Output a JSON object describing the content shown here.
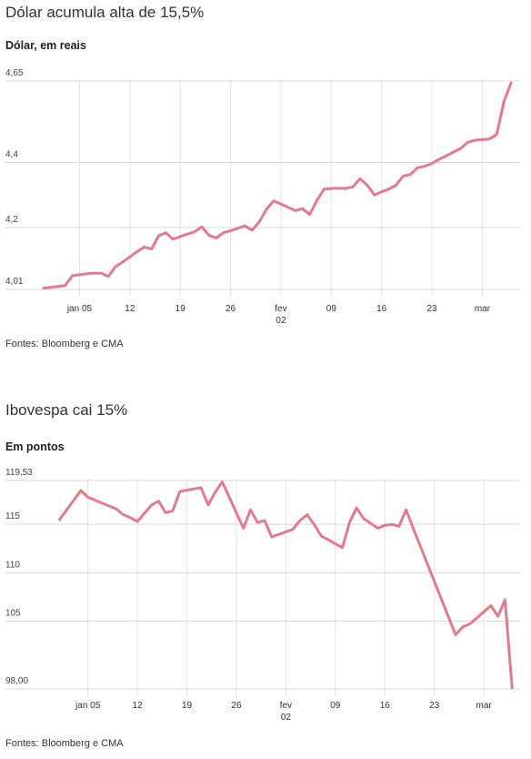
{
  "charts": [
    {
      "headline": "Dólar acumula alta de 15,5%",
      "subtitle": "Dólar, em reais",
      "source": "Fontes: Bloomberg e CMA"
    },
    {
      "headline": "Ibovespa cai 15%",
      "subtitle": "Em pontos",
      "source": "Fontes: Bloomberg e CMA"
    }
  ],
  "chart_data": [
    {
      "type": "line",
      "title": "Dólar acumula alta de 15,5%",
      "subtitle": "Dólar, em reais",
      "ylim": [
        4.01,
        4.65
      ],
      "yticks": [
        {
          "value": 4.65,
          "label": "4,65"
        },
        {
          "value": 4.4,
          "label": "4,4"
        },
        {
          "value": 4.2,
          "label": "4,2"
        },
        {
          "value": 4.01,
          "label": "4,01"
        }
      ],
      "xticks": [
        {
          "day": 5,
          "label": "jan 05"
        },
        {
          "day": 12,
          "label": "12"
        },
        {
          "day": 19,
          "label": "19"
        },
        {
          "day": 26,
          "label": "26"
        },
        {
          "day": 33,
          "label": "fev",
          "label2": "02"
        },
        {
          "day": 40,
          "label": "09"
        },
        {
          "day": 47,
          "label": "16"
        },
        {
          "day": 54,
          "label": "23"
        },
        {
          "day": 61,
          "label": "mar"
        }
      ],
      "xlim": [
        -1,
        66
      ],
      "grid": true,
      "color": "#e57a8c",
      "series": [
        {
          "x": [
            0,
            3,
            4,
            6,
            7,
            8,
            9,
            10,
            11,
            12,
            13,
            14,
            15,
            16,
            17,
            18,
            19,
            20,
            21,
            22,
            23,
            24,
            25,
            26,
            27,
            28,
            29,
            30,
            31,
            32,
            33,
            34,
            35,
            36,
            37,
            38,
            39,
            40,
            41,
            42,
            43,
            44,
            45,
            46,
            47,
            48,
            49,
            50,
            51,
            52,
            53,
            54,
            55,
            56,
            57,
            58,
            59,
            60,
            61,
            62,
            63,
            64,
            65
          ],
          "y": [
            4.014,
            4.022,
            4.052,
            4.058,
            4.06,
            4.06,
            4.05,
            4.08,
            4.094,
            4.11,
            4.126,
            4.14,
            4.134,
            4.175,
            4.184,
            4.164,
            4.172,
            4.18,
            4.187,
            4.202,
            4.176,
            4.168,
            4.184,
            4.19,
            4.198,
            4.205,
            4.192,
            4.218,
            4.256,
            4.282,
            4.272,
            4.262,
            4.252,
            4.258,
            4.24,
            4.283,
            4.318,
            4.32,
            4.321,
            4.32,
            4.325,
            4.35,
            4.33,
            4.3,
            4.31,
            4.318,
            4.33,
            4.358,
            4.363,
            4.384,
            4.388,
            4.397,
            4.41,
            4.42,
            4.432,
            4.443,
            4.462,
            4.468,
            4.47,
            4.472,
            4.486,
            4.587,
            4.644
          ]
        }
      ]
    },
    {
      "type": "line",
      "title": "Ibovespa cai 15%",
      "subtitle": "Em pontos",
      "ylim": [
        98.0,
        119.53
      ],
      "yticks": [
        {
          "value": 119.53,
          "label": "119,53"
        },
        {
          "value": 115,
          "label": "115"
        },
        {
          "value": 110,
          "label": "110"
        },
        {
          "value": 105,
          "label": "105"
        },
        {
          "value": 98.0,
          "label": "98,00"
        }
      ],
      "xticks": [
        {
          "day": 5,
          "label": "jan 05"
        },
        {
          "day": 12,
          "label": "12"
        },
        {
          "day": 19,
          "label": "19"
        },
        {
          "day": 26,
          "label": "26"
        },
        {
          "day": 33,
          "label": "fev",
          "label2": "02"
        },
        {
          "day": 40,
          "label": "09"
        },
        {
          "day": 47,
          "label": "16"
        },
        {
          "day": 54,
          "label": "23"
        },
        {
          "day": 61,
          "label": "mar"
        }
      ],
      "xlim": [
        -1,
        66
      ],
      "grid": true,
      "color": "#e57a8c",
      "series": [
        {
          "x": [
            1,
            4,
            5,
            8,
            9,
            10,
            11,
            12,
            14,
            15,
            16,
            17,
            18,
            21,
            22,
            23,
            24,
            27,
            28,
            29,
            30,
            31,
            34,
            35,
            36,
            37,
            38,
            41,
            42,
            43,
            44,
            46,
            47,
            48,
            49,
            50,
            51,
            57,
            58,
            59,
            62,
            63,
            64,
            65
          ],
          "y": [
            115.5,
            118.5,
            117.8,
            116.9,
            116.6,
            116.0,
            115.7,
            115.3,
            117.0,
            117.4,
            116.2,
            116.4,
            118.4,
            118.8,
            117.0,
            118.3,
            119.4,
            114.6,
            116.5,
            115.2,
            115.4,
            113.7,
            114.5,
            115.4,
            116.0,
            115.0,
            113.8,
            112.6,
            115.2,
            116.7,
            115.6,
            114.6,
            114.9,
            115.0,
            114.8,
            116.5,
            114.6,
            103.6,
            104.4,
            104.7,
            106.6,
            105.5,
            107.2,
            98.1
          ]
        }
      ]
    }
  ]
}
